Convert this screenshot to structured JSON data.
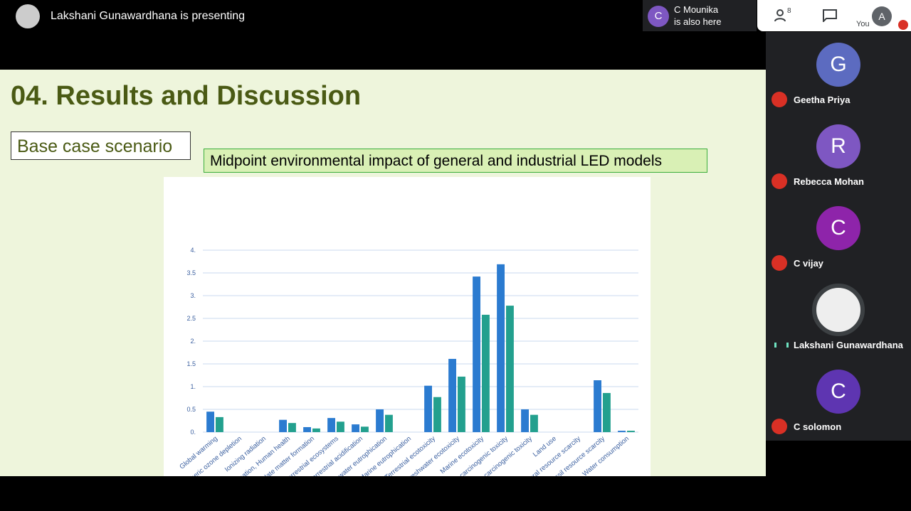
{
  "header": {
    "presenting": "Lakshani Gunawardhana is presenting",
    "also_here_initial": "C",
    "also_here_name": "C Mounika",
    "also_here_text": "is also here",
    "people_count": "8",
    "you_label": "You",
    "you_initial": "A"
  },
  "participants": [
    {
      "initial": "G",
      "name": "Geetha Priya",
      "color": "#5c6bc0"
    },
    {
      "initial": "R",
      "name": "Rebecca Mohan",
      "color": "#7e57c2"
    },
    {
      "initial": "C",
      "name": "C vijay",
      "color": "#8e24aa"
    },
    {
      "initial": null,
      "name": "Lakshani Gunawardhana",
      "color": "#3c4043"
    },
    {
      "initial": "C",
      "name": "C solomon",
      "color": "#5e35b1"
    }
  ],
  "slide": {
    "title": "04. Results and Discussion",
    "label": "Base case scenario",
    "caption": "Midpoint environmental impact of general and industrial LED models"
  },
  "chart_data": {
    "type": "bar",
    "categories": [
      "Global warming",
      "Stratospheric ozone depletion",
      "Ionizing radiation",
      "Ozone formation, Human health",
      "Fine particulate matter formation",
      "Ozone formation, Terrestrial ecosystems",
      "Terrestrial acidification",
      "Freshwater eutrophication",
      "Marine eutrophication",
      "Terrestrial ecotoxicity",
      "Freshwater ecotoxicity",
      "Marine ecotoxicity",
      "Human carcinogenic toxicity",
      "Human non-carcinogenic toxicity",
      "Land use",
      "Mineral resource scarcity",
      "Fossil resource scarcity",
      "Water consumption"
    ],
    "series": [
      {
        "color": "#2b7bd0",
        "values": [
          0.45,
          0,
          0,
          0.27,
          0.11,
          0.31,
          0.17,
          0.5,
          0,
          1.02,
          1.61,
          3.42,
          3.69,
          0.5,
          0,
          0,
          1.14,
          0.03
        ]
      },
      {
        "color": "#23a08e",
        "values": [
          0.33,
          0,
          0,
          0.2,
          0.08,
          0.23,
          0.12,
          0.38,
          0,
          0.77,
          1.22,
          2.58,
          2.78,
          0.38,
          0,
          0,
          0.86,
          0.03
        ]
      }
    ],
    "ylim": [
      0,
      4
    ],
    "yticks": [
      {
        "value": 0,
        "label": "0."
      },
      0.5,
      {
        "value": 1,
        "label": "1."
      },
      1.5,
      {
        "value": 2,
        "label": "2."
      },
      2.5,
      {
        "value": 3,
        "label": "3."
      },
      3.5,
      {
        "value": 4,
        "label": "4."
      }
    ],
    "grid": true
  }
}
